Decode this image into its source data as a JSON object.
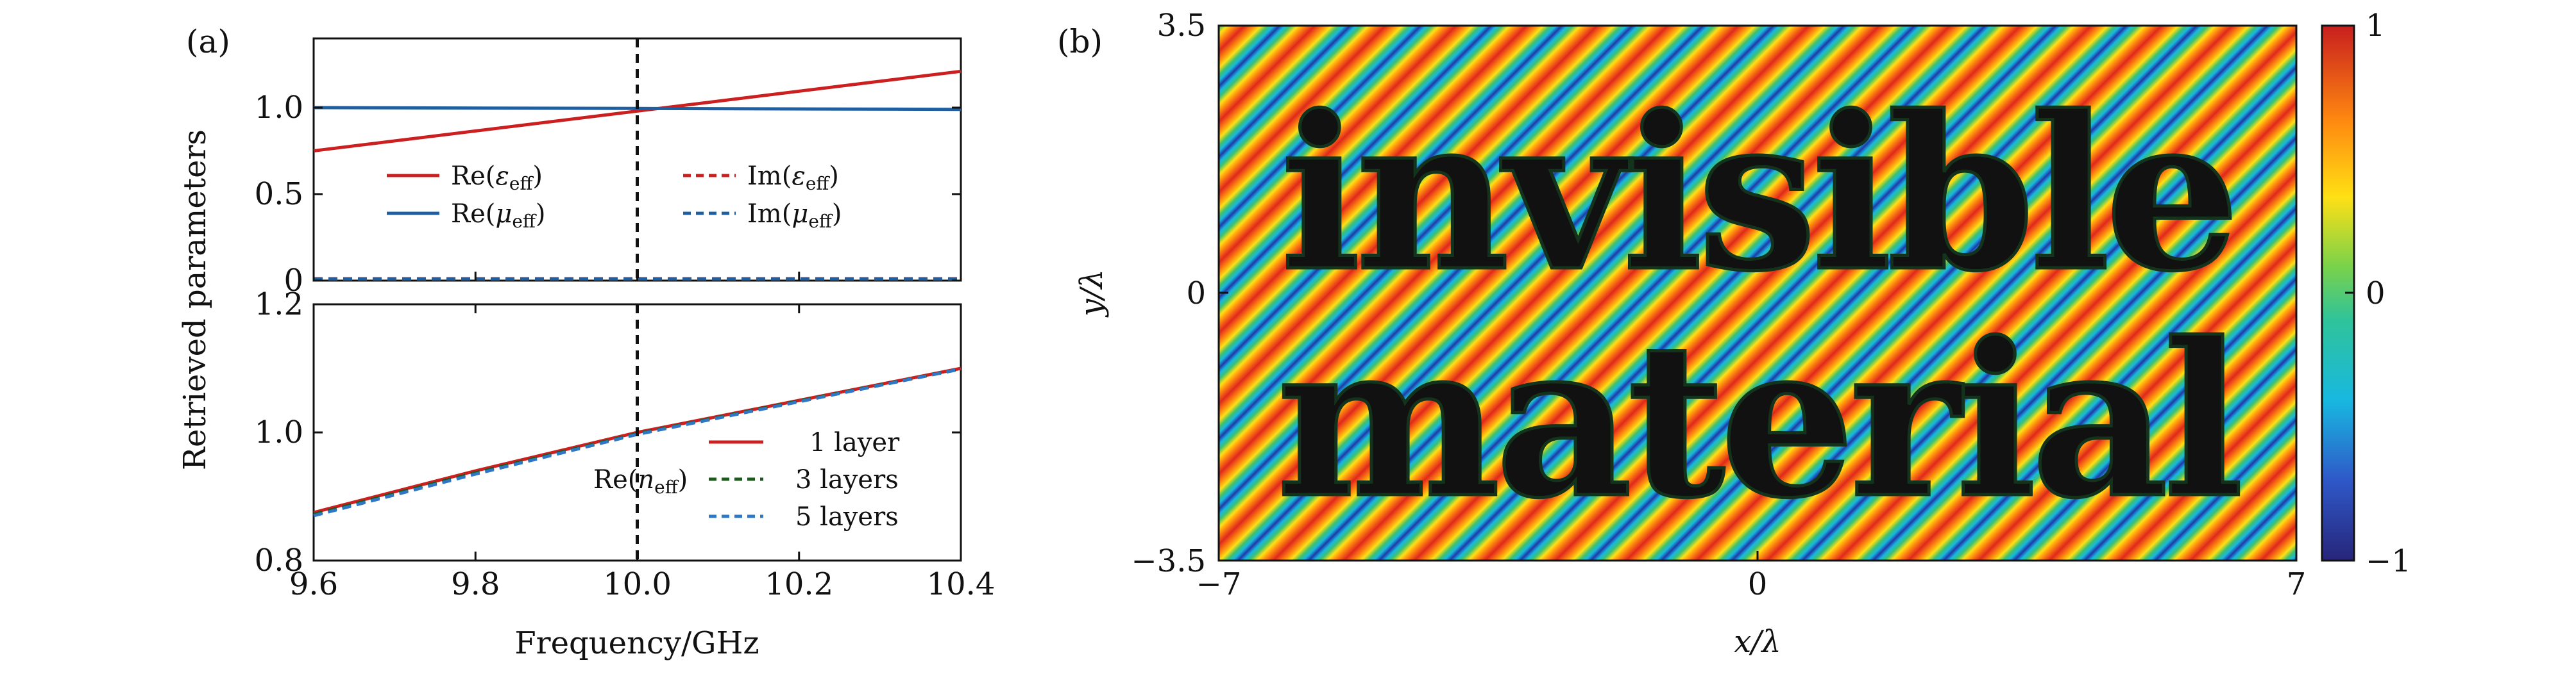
{
  "colors": {
    "re_eps": "#cc2020",
    "re_mu": "#1f5fa0",
    "im_eps": "#cc2020",
    "im_mu": "#1f5fa0",
    "layer1": "#cc2020",
    "layer3": "#1a5a1a",
    "layer5": "#2d77c4",
    "guide": "#111111"
  },
  "chart_data": [
    {
      "panel": "(a)",
      "type": "line",
      "subplot": "top",
      "title": "",
      "xlabel": "Frequency/GHz",
      "ylabel": "Retrieved parameters",
      "xlim": [
        9.6,
        10.4
      ],
      "ylim": [
        0,
        1.4
      ],
      "yticks": [
        0,
        0.5,
        1.0
      ],
      "ytick_labels": [
        "0",
        "0.5",
        "1.0"
      ],
      "grid": false,
      "legend_position": "center",
      "vline_x": 10.0,
      "series": [
        {
          "name": "Re(ε_eff)",
          "style": "solid",
          "color_key": "re_eps",
          "x": [
            9.6,
            10.4
          ],
          "y": [
            0.75,
            1.21
          ]
        },
        {
          "name": "Re(μ_eff)",
          "style": "solid",
          "color_key": "re_mu",
          "x": [
            9.6,
            10.0,
            10.4
          ],
          "y": [
            1.0,
            0.995,
            0.99
          ]
        },
        {
          "name": "Im(ε_eff)",
          "style": "dashed",
          "color_key": "im_eps",
          "x": [
            9.6,
            10.4
          ],
          "y": [
            0.01,
            0.01
          ]
        },
        {
          "name": "Im(μ_eff)",
          "style": "dashed",
          "color_key": "im_mu",
          "x": [
            9.6,
            10.4
          ],
          "y": [
            0.01,
            0.01
          ]
        }
      ]
    },
    {
      "panel": "(a)",
      "type": "line",
      "subplot": "bottom",
      "title": "",
      "xlabel": "Frequency/GHz",
      "ylabel": "Retrieved parameters",
      "xlim": [
        9.6,
        10.4
      ],
      "ylim": [
        0.8,
        1.2
      ],
      "xticks": [
        9.6,
        9.8,
        10.0,
        10.2,
        10.4
      ],
      "xtick_labels": [
        "9.6",
        "9.8",
        "10.0",
        "10.2",
        "10.4"
      ],
      "yticks": [
        0.8,
        1.0,
        1.2
      ],
      "ytick_labels": [
        "0.8",
        "1.0",
        "1.2"
      ],
      "grid": false,
      "legend_position": "bottom-right",
      "annotation": "Re(n_eff)",
      "vline_x": 10.0,
      "series": [
        {
          "name": "1 layer",
          "style": "solid",
          "color_key": "layer1",
          "x": [
            9.6,
            9.8,
            10.0,
            10.2,
            10.4
          ],
          "y": [
            0.875,
            0.94,
            1.0,
            1.05,
            1.1
          ]
        },
        {
          "name": "3 layers",
          "style": "dashed",
          "color_key": "layer3",
          "x": [
            9.6,
            9.8,
            10.0,
            10.2,
            10.4
          ],
          "y": [
            0.872,
            0.937,
            0.998,
            1.049,
            1.099
          ]
        },
        {
          "name": "5 layers",
          "style": "dashed",
          "color_key": "layer5",
          "x": [
            9.6,
            9.8,
            10.0,
            10.2,
            10.4
          ],
          "y": [
            0.87,
            0.935,
            0.997,
            1.048,
            1.099
          ]
        }
      ]
    },
    {
      "panel": "(b)",
      "type": "heatmap",
      "title": "",
      "xlabel": "x/λ",
      "ylabel": "y/λ",
      "xlim": [
        -7,
        7
      ],
      "ylim": [
        -3.5,
        3.5
      ],
      "xtick_labels": [
        "−7",
        "0",
        "7"
      ],
      "ytick_labels": [
        "3.5",
        "0",
        "−3.5"
      ],
      "colorbar": {
        "range": [
          -1,
          1
        ],
        "tick_labels": [
          "1",
          "0",
          "−1"
        ],
        "colormap": "jet"
      },
      "field": "plane wave, diagonal wavefronts",
      "overlay_text": [
        "invisible",
        "material"
      ]
    }
  ]
}
